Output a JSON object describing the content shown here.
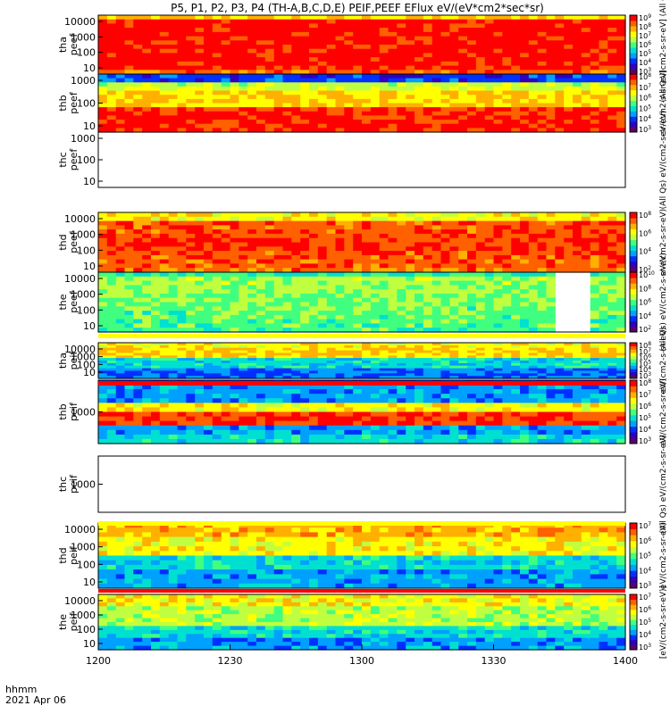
{
  "chart_data": {
    "type": "heatmap",
    "title": "P5, P1, P2, P3, P4 (TH-A,B,C,D,E) PEIF,PEEF EFlux eV/(eV*cm2*sec*sr)",
    "x_axis": {
      "ticks": [
        "1200",
        "1230",
        "1300",
        "1330",
        "1400"
      ],
      "corner_label_1": "hhmm",
      "corner_label_2": "2021 Apr 06"
    },
    "panels": [
      {
        "probe": "tha",
        "product": "peef",
        "yticks": [
          "10",
          "100",
          "1000",
          "10000"
        ],
        "has_data": true,
        "colorbar_label": "(All Qs)[cm2-s-sr-eV] (All Qs)",
        "cbar_ticks": [
          "10^3",
          "10^4",
          "10^5",
          "10^6",
          "10^7",
          "10^8",
          "10^9"
        ]
      },
      {
        "probe": "thb",
        "product": "peef",
        "yticks": [
          "10",
          "100",
          "1000"
        ],
        "has_data": true,
        "colorbar_label": "eV/(cm2-s-sr-eV)",
        "cbar_ticks": [
          "10^3",
          "10^4",
          "10^5",
          "10^6",
          "10^7",
          "10^8"
        ]
      },
      {
        "probe": "thc",
        "product": "peef",
        "yticks": [
          "10",
          "100",
          "1000"
        ],
        "has_data": false,
        "colorbar_label": "(All Qs) eV/(cm2-s-sr-eV)",
        "cbar_ticks": []
      },
      {
        "probe": "thd",
        "product": "peef",
        "yticks": [
          "10",
          "100",
          "1000",
          "10000"
        ],
        "has_data": true,
        "colorbar_label": "eV/(cm2-s-sr-eV)",
        "cbar_ticks": [
          "10^2",
          "10^4",
          "10^6",
          "10^8"
        ]
      },
      {
        "probe": "the",
        "product": "peef",
        "yticks": [
          "10",
          "100",
          "1000",
          "10000"
        ],
        "has_data": true,
        "colorbar_label": "(All Qs) eV/(cm2-s-sr-eV)",
        "cbar_ticks": [
          "10^2",
          "10^4",
          "10^6",
          "10^8",
          "10^10"
        ]
      },
      {
        "probe": "tha",
        "product": "peif",
        "yticks": [
          "10",
          "100",
          "1000",
          "10000"
        ],
        "has_data": true,
        "colorbar_label": "eV/(cm2-s-sr-eV)",
        "cbar_ticks": [
          "10^3",
          "10^4",
          "10^5",
          "10^6",
          "10^7",
          "10^8"
        ]
      },
      {
        "probe": "thb",
        "product": "peif",
        "yticks": [
          "1000"
        ],
        "has_data": true,
        "colorbar_label": "eV/(cm2-s-sr-eV)",
        "cbar_ticks": [
          "10^3",
          "10^4",
          "10^5",
          "10^6",
          "10^7",
          "10^8"
        ]
      },
      {
        "probe": "thc",
        "product": "peif",
        "yticks": [
          "1000"
        ],
        "has_data": false,
        "colorbar_label": "(All Qs) eV/(cm2-s-sr-eV)",
        "cbar_ticks": []
      },
      {
        "probe": "thd",
        "product": "peif",
        "yticks": [
          "10",
          "100",
          "1000",
          "10000"
        ],
        "has_data": true,
        "colorbar_label": "eV/(cm2-s-sr-eV)",
        "cbar_ticks": [
          "10^3",
          "10^4",
          "10^5",
          "10^6",
          "10^7"
        ]
      },
      {
        "probe": "the",
        "product": "peif",
        "yticks": [
          "10",
          "100",
          "1000",
          "10000"
        ],
        "has_data": true,
        "colorbar_label": "[eV/(cm2-s-sr-eV)]",
        "cbar_ticks": [
          "10^3",
          "10^4",
          "10^5",
          "10^6",
          "10^7"
        ]
      }
    ],
    "colormap": [
      "#5a006e",
      "#3000c0",
      "#0030ff",
      "#00a0ff",
      "#00e0d0",
      "#40ff80",
      "#c0ff40",
      "#ffff00",
      "#ffb000",
      "#ff6000",
      "#ff0000"
    ]
  }
}
